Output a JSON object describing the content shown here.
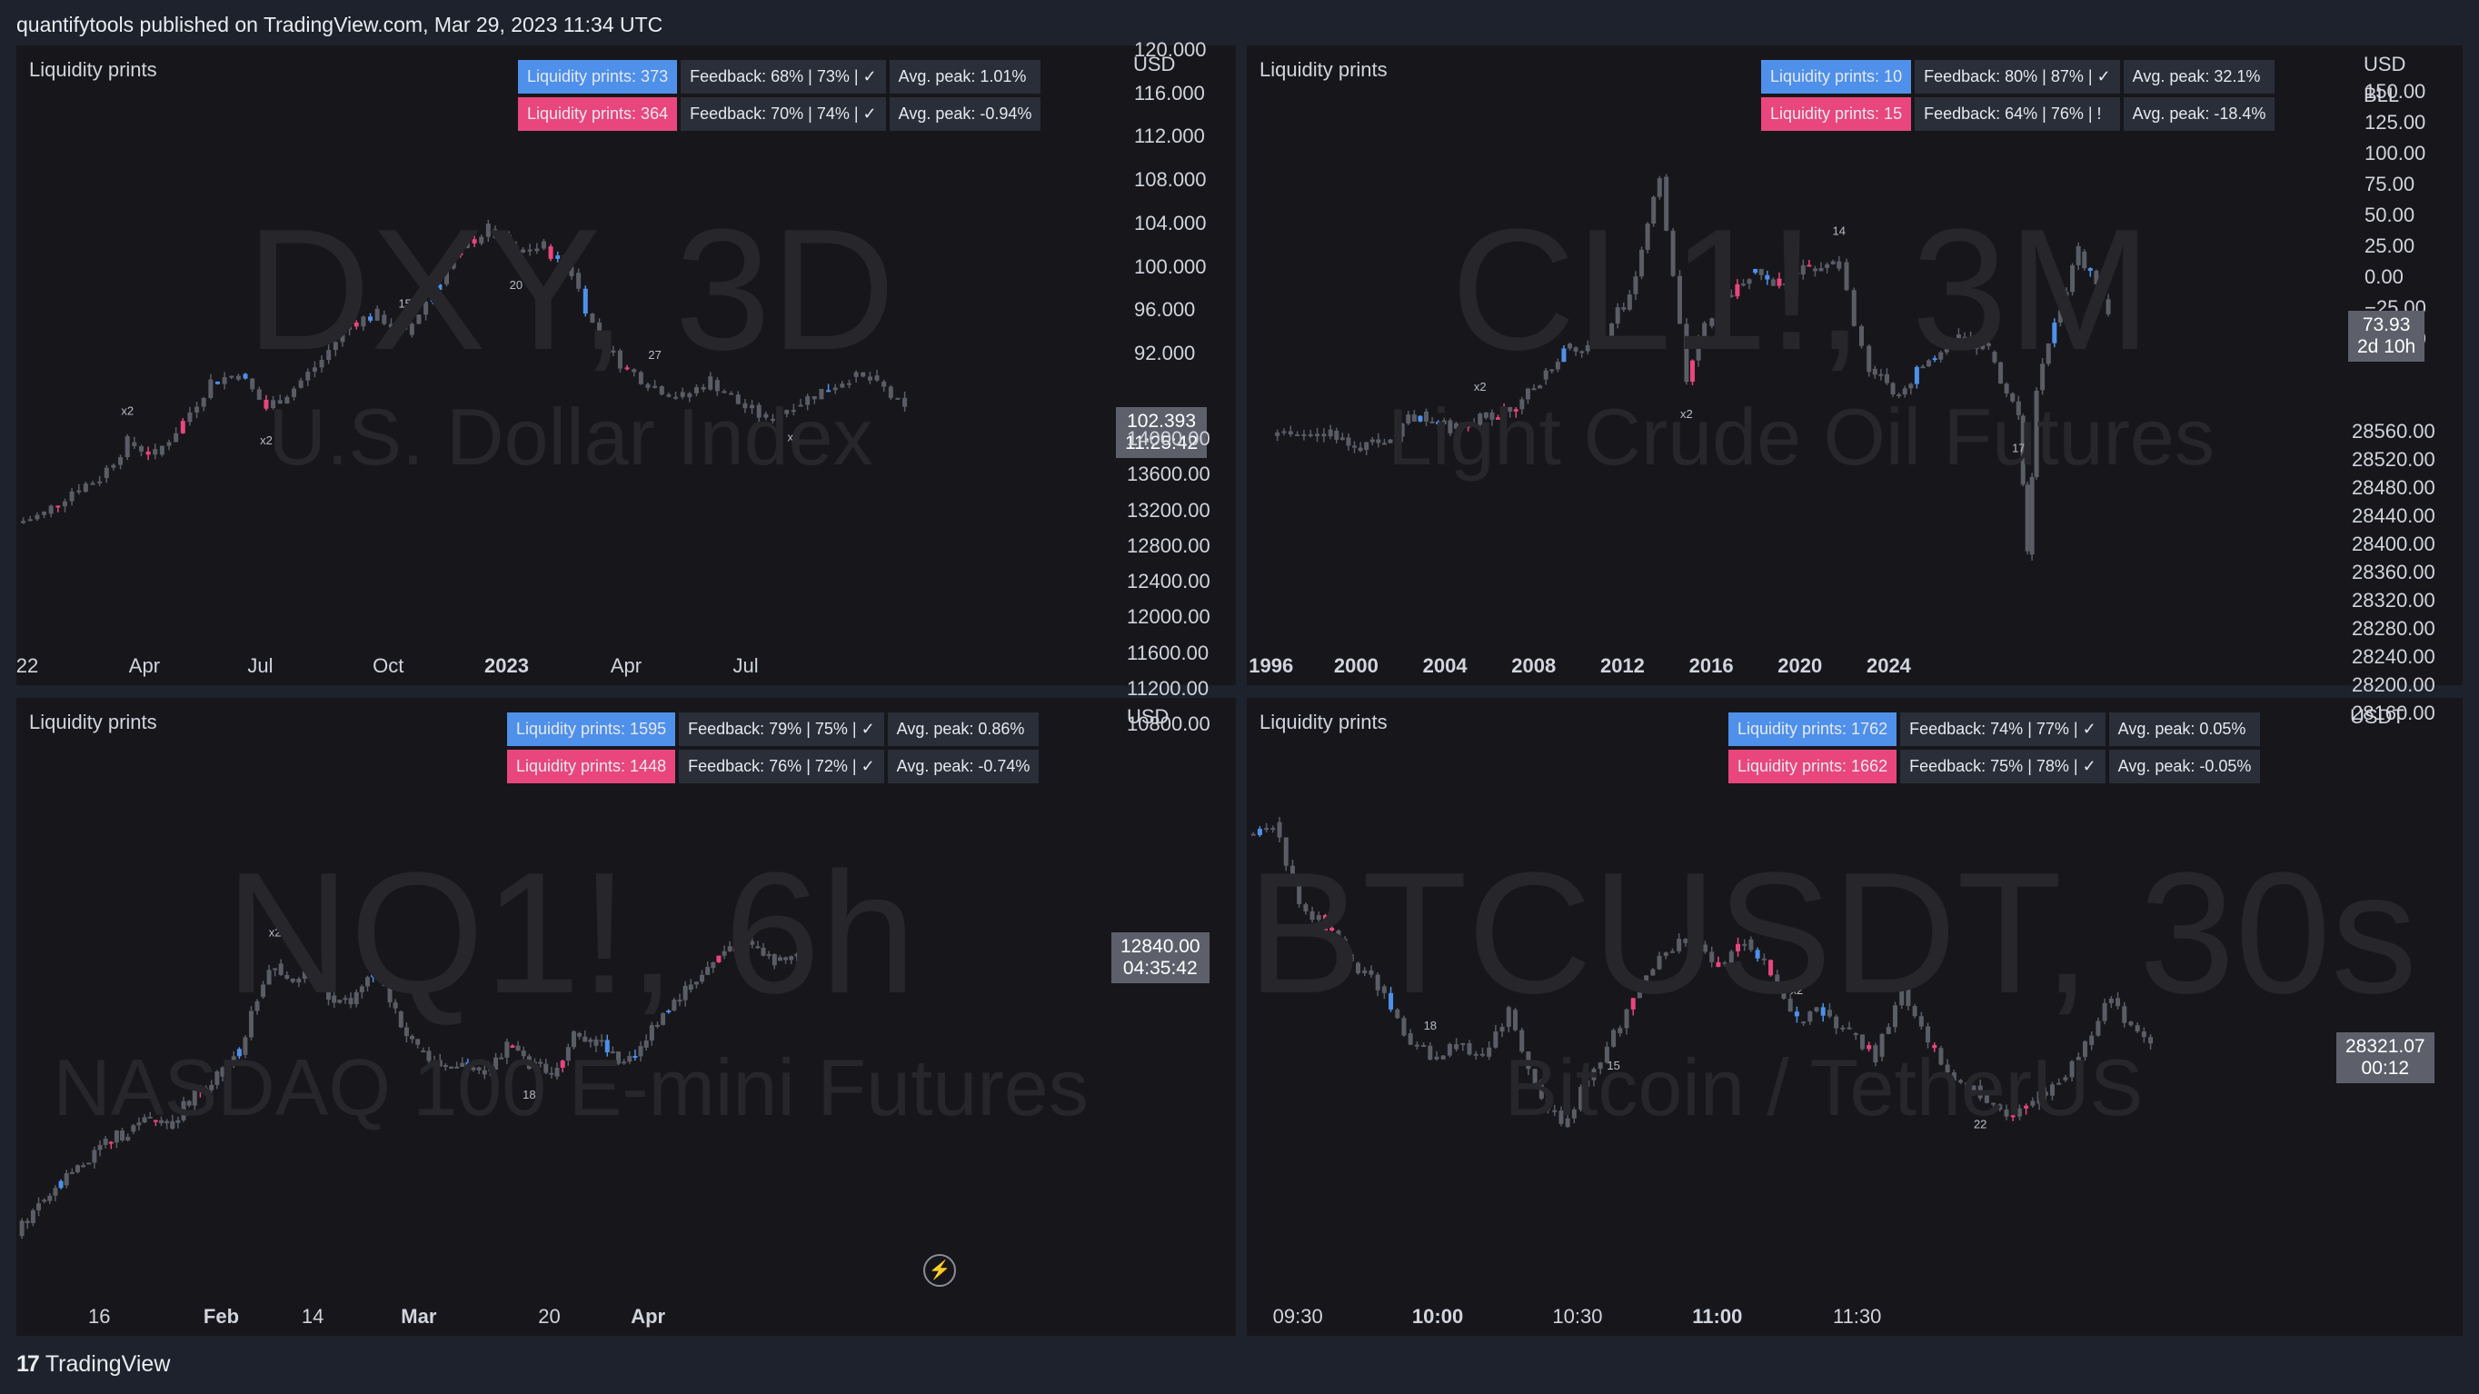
{
  "header": {
    "published": "quantifytools published on TradingView.com, Mar 29, 2023 11:34 UTC"
  },
  "footer": {
    "brand": "TradingView"
  },
  "colors": {
    "bull": "#e8467c",
    "bear": "#4e90ea",
    "neutral": "#5a5d66",
    "background": "#17171b",
    "gap": "#1e222d"
  },
  "chart_data": [
    {
      "type": "candlestick",
      "title": "Liquidity prints",
      "watermark": "DXY, 3D",
      "subtitle": "U.S. Dollar Index",
      "currency": "USD",
      "y_ticks": [
        "120.000",
        "116.000",
        "112.000",
        "108.000",
        "104.000",
        "100.000",
        "96.000",
        "92.000"
      ],
      "ylim": [
        89.1,
        123
      ],
      "x_ticks": [
        "22",
        "Apr",
        "Jul",
        "Oct",
        "2023",
        "Apr",
        "Jul"
      ],
      "x_bold": [
        false,
        false,
        false,
        false,
        true,
        false,
        false
      ],
      "current_price": "102.393",
      "countdown": "11:25:42",
      "stats": {
        "bull": {
          "label": "Liquidity prints: 373",
          "feedback": "Feedback: 68% | 73% | ✓",
          "avg": "Avg. peak: 1.01%"
        },
        "bear": {
          "label": "Liquidity prints: 364",
          "feedback": "Feedback: 70% | 74% | ✓",
          "avg": "Avg. peak: -0.94%"
        }
      },
      "annotations": [
        "x2",
        "x2",
        "15",
        "20",
        "27",
        "x2"
      ],
      "series_path": [
        [
          0,
          95.2
        ],
        [
          8,
          95.8
        ],
        [
          16,
          97.3
        ],
        [
          24,
          98.1
        ],
        [
          32,
          100.4
        ],
        [
          40,
          99.6
        ],
        [
          48,
          101.7
        ],
        [
          56,
          104.3
        ],
        [
          64,
          104.8
        ],
        [
          72,
          102.6
        ],
        [
          80,
          103.9
        ],
        [
          88,
          105.7
        ],
        [
          96,
          108.1
        ],
        [
          104,
          108.6
        ],
        [
          112,
          107.3
        ],
        [
          120,
          110.2
        ],
        [
          128,
          112.9
        ],
        [
          136,
          114.1
        ],
        [
          144,
          112.6
        ],
        [
          152,
          113.0
        ],
        [
          160,
          111.3
        ],
        [
          168,
          106.9
        ],
        [
          176,
          105.1
        ],
        [
          184,
          104.0
        ],
        [
          192,
          103.3
        ],
        [
          200,
          104.4
        ],
        [
          208,
          102.9
        ],
        [
          216,
          101.9
        ],
        [
          224,
          102.8
        ],
        [
          232,
          103.7
        ],
        [
          240,
          104.6
        ],
        [
          248,
          104.3
        ],
        [
          256,
          102.4
        ]
      ],
      "series_x_max": 320
    },
    {
      "type": "candlestick",
      "title": "Liquidity prints",
      "watermark": "CL1!, 3M",
      "subtitle": "Light Crude Oil Futures",
      "currency": "USD",
      "currency2": "BLL",
      "y_ticks": [
        "150.00",
        "125.00",
        "100.00",
        "75.00",
        "50.00",
        "25.00",
        "0.00",
        "−25.00",
        "−50.00"
      ],
      "ylim": [
        -71,
        176
      ],
      "x_ticks": [
        "1996",
        "2000",
        "2004",
        "2008",
        "2012",
        "2016",
        "2020",
        "2024"
      ],
      "x_bold": [
        true,
        true,
        true,
        true,
        true,
        true,
        true,
        true
      ],
      "current_price": "73.93",
      "countdown": "2d 10h",
      "stats": {
        "bull": {
          "label": "Liquidity prints: 10",
          "feedback": "Feedback: 80% | 87% | ✓",
          "avg": "Avg. peak: 32.1%"
        },
        "bear": {
          "label": "Liquidity prints: 15",
          "feedback": "Feedback: 64% | 76% | !",
          "avg": "Avg. peak: -18.4%"
        }
      },
      "annotations": [
        "x2",
        "x2",
        "14",
        "17"
      ],
      "series_path": [
        [
          1995,
          18.5
        ],
        [
          1997,
          21
        ],
        [
          1998,
          12
        ],
        [
          1999,
          19
        ],
        [
          2000,
          30
        ],
        [
          2001,
          22
        ],
        [
          2002,
          27
        ],
        [
          2003,
          30
        ],
        [
          2004,
          45
        ],
        [
          2005,
          60
        ],
        [
          2006,
          62
        ],
        [
          2007,
          85
        ],
        [
          2008,
          140
        ],
        [
          2008.9,
          44
        ],
        [
          2009.5,
          70
        ],
        [
          2010,
          80
        ],
        [
          2011,
          95
        ],
        [
          2012,
          90
        ],
        [
          2013,
          97
        ],
        [
          2014,
          100
        ],
        [
          2014.5,
          70
        ],
        [
          2015,
          50
        ],
        [
          2016,
          38
        ],
        [
          2017,
          55
        ],
        [
          2018,
          65
        ],
        [
          2019,
          58
        ],
        [
          2020,
          28
        ],
        [
          2020.3,
          -37
        ],
        [
          2020.6,
          40
        ],
        [
          2021,
          62
        ],
        [
          2022,
          105
        ],
        [
          2022.6,
          90
        ],
        [
          2023,
          74
        ]
      ],
      "x_range": [
        1994.2,
        2031.2
      ]
    },
    {
      "type": "candlestick",
      "title": "Liquidity prints",
      "watermark": "NQ1!, 6h",
      "subtitle": "NASDAQ 100 E-mini Futures",
      "currency": "USD",
      "y_ticks": [
        "14000.00",
        "13600.00",
        "13200.00",
        "12800.00",
        "12400.00",
        "12000.00",
        "11600.00",
        "11200.00",
        "10800.00"
      ],
      "ylim": [
        10600,
        14300
      ],
      "x_ticks": [
        "16",
        "Feb",
        "14",
        "Mar",
        "20",
        "Apr"
      ],
      "x_bold": [
        false,
        true,
        false,
        true,
        false,
        true
      ],
      "current_price": "12840.00",
      "countdown": "04:35:42",
      "stats": {
        "bull": {
          "label": "Liquidity prints: 1595",
          "feedback": "Feedback: 79% | 75% | ✓",
          "avg": "Avg. peak: 0.86%"
        },
        "bear": {
          "label": "Liquidity prints: 1448",
          "feedback": "Feedback: 76% | 72% | ✓",
          "avg": "Avg. peak: -0.74%"
        }
      },
      "annotations": [
        "x2",
        "18"
      ],
      "series_path": [
        [
          0,
          10900
        ],
        [
          10,
          11150
        ],
        [
          20,
          11250
        ],
        [
          30,
          11400
        ],
        [
          40,
          11550
        ],
        [
          50,
          11620
        ],
        [
          60,
          11700
        ],
        [
          70,
          11680
        ],
        [
          80,
          11900
        ],
        [
          90,
          12000
        ],
        [
          100,
          12150
        ],
        [
          108,
          12550
        ],
        [
          116,
          12780
        ],
        [
          124,
          12650
        ],
        [
          132,
          12700
        ],
        [
          140,
          12560
        ],
        [
          150,
          12500
        ],
        [
          160,
          12750
        ],
        [
          170,
          12450
        ],
        [
          180,
          12180
        ],
        [
          190,
          12080
        ],
        [
          200,
          12100
        ],
        [
          210,
          12050
        ],
        [
          220,
          12200
        ],
        [
          230,
          12100
        ],
        [
          240,
          12000
        ],
        [
          250,
          12300
        ],
        [
          260,
          12250
        ],
        [
          270,
          12100
        ],
        [
          280,
          12200
        ],
        [
          290,
          12450
        ],
        [
          300,
          12600
        ],
        [
          310,
          12750
        ],
        [
          320,
          12900
        ],
        [
          330,
          12900
        ],
        [
          340,
          12800
        ],
        [
          350,
          12880
        ]
      ],
      "series_x_max": 498
    },
    {
      "type": "candlestick",
      "title": "Liquidity prints",
      "watermark": "BTCUSDT, 30s",
      "subtitle": "Bitcoin / TetherUS",
      "currency": "USDT",
      "y_ticks": [
        "28560.00",
        "28520.00",
        "28480.00",
        "28440.00",
        "28400.00",
        "28360.00",
        "28320.00",
        "28280.00",
        "28240.00",
        "28200.00",
        "28160.00"
      ],
      "ylim": [
        28130,
        28595
      ],
      "x_ticks": [
        "09:30",
        "10:00",
        "10:30",
        "11:00",
        "11:30"
      ],
      "x_bold": [
        false,
        true,
        false,
        true,
        false
      ],
      "current_price": "28321.07",
      "countdown": "00:12",
      "stats": {
        "bull": {
          "label": "Liquidity prints: 1762",
          "feedback": "Feedback: 74% | 77% | ✓",
          "avg": "Avg. peak: 0.05%"
        },
        "bear": {
          "label": "Liquidity prints: 1662",
          "feedback": "Feedback: 75% | 78% | ✓",
          "avg": "Avg. peak: -0.05%"
        }
      },
      "annotations": [
        "18",
        "15",
        "x2",
        "22"
      ],
      "series_path": [
        [
          0,
          28510
        ],
        [
          8,
          28520
        ],
        [
          16,
          28450
        ],
        [
          24,
          28430
        ],
        [
          32,
          28400
        ],
        [
          40,
          28380
        ],
        [
          48,
          28340
        ],
        [
          56,
          28320
        ],
        [
          64,
          28330
        ],
        [
          72,
          28320
        ],
        [
          80,
          28360
        ],
        [
          88,
          28300
        ],
        [
          96,
          28260
        ],
        [
          104,
          28300
        ],
        [
          112,
          28340
        ],
        [
          120,
          28380
        ],
        [
          128,
          28410
        ],
        [
          136,
          28420
        ],
        [
          144,
          28400
        ],
        [
          152,
          28420
        ],
        [
          160,
          28390
        ],
        [
          168,
          28350
        ],
        [
          176,
          28360
        ],
        [
          184,
          28340
        ],
        [
          192,
          28320
        ],
        [
          200,
          28380
        ],
        [
          208,
          28330
        ],
        [
          216,
          28300
        ],
        [
          224,
          28290
        ],
        [
          232,
          28270
        ],
        [
          240,
          28280
        ],
        [
          248,
          28300
        ],
        [
          256,
          28330
        ],
        [
          264,
          28370
        ],
        [
          268,
          28350
        ],
        [
          276,
          28330
        ]
      ],
      "series_x_max": 338
    }
  ]
}
